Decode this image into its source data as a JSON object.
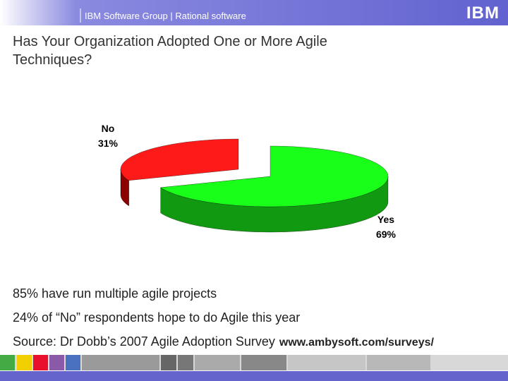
{
  "header": {
    "group": "IBM Software Group | Rational software",
    "logo": "IBM"
  },
  "chart_data": {
    "type": "pie",
    "title": "Has Your Organization Adopted One or More Agile Techniques?",
    "categories": [
      "No",
      "Yes"
    ],
    "values": [
      31,
      69
    ],
    "value_labels": [
      "31%",
      "69%"
    ],
    "colors": [
      "#ff1a1a",
      "#1aff1a"
    ],
    "side_colors": [
      "#8b0000",
      "#119911"
    ]
  },
  "notes": [
    "85% have run multiple agile projects",
    "24% of “No” respondents hope to do Agile this year"
  ],
  "source": {
    "text": "Source: Dr Dobb’s 2007 Agile Adoption Survey",
    "url": "www.ambysoft.com/surveys/"
  }
}
